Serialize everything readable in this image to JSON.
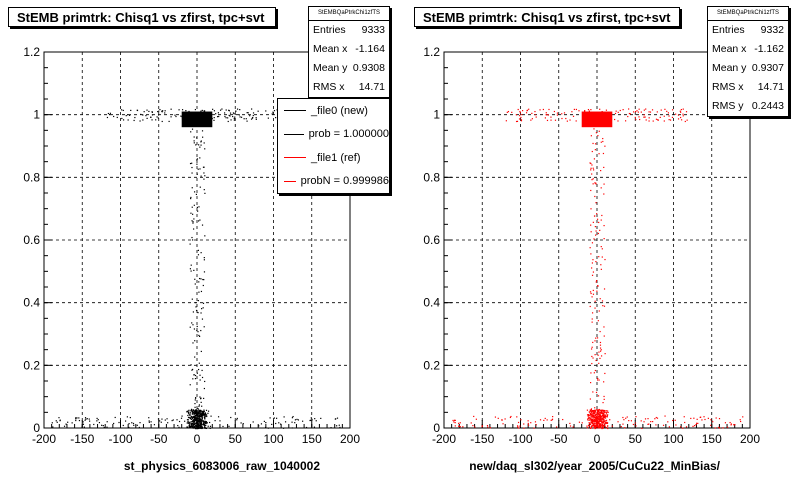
{
  "colors": {
    "ref": "#000000",
    "new": "#ff0000",
    "grid": "#000000"
  },
  "panels": [
    {
      "title": "StEMB primtrk: Chisq1 vs zfirst, tpc+svt",
      "xlabel": "st_physics_6083006_raw_1040002",
      "stats": {
        "name": "StEMBQaPtrkChi1zfTS",
        "rows": [
          {
            "label": "Entries",
            "value": "9333"
          },
          {
            "label": "Mean x",
            "value": "-1.164"
          },
          {
            "label": "Mean y",
            "value": "0.9308"
          },
          {
            "label": "RMS x",
            "value": "14.71"
          }
        ]
      }
    },
    {
      "title": "StEMB primtrk: Chisq1 vs zfirst, tpc+svt",
      "xlabel": "new/daq_sl302/year_2005/CuCu22_MinBias/",
      "stats": {
        "name": "StEMBQaPtrkChi1zfTS",
        "rows": [
          {
            "label": "Entries",
            "value": "9332"
          },
          {
            "label": "Mean x",
            "value": "-1.162"
          },
          {
            "label": "Mean y",
            "value": "0.9307"
          },
          {
            "label": "RMS x",
            "value": "14.71"
          },
          {
            "label": "RMS y",
            "value": "0.2443"
          }
        ]
      }
    }
  ],
  "legend": [
    {
      "label": "_file0 (new)",
      "color": "#000000"
    },
    {
      "label": "prob = 1.000000",
      "color": "#000000"
    },
    {
      "label": "_file1 (ref)",
      "color": "#ff0000"
    },
    {
      "label": "probN = 0.999986",
      "color": "#ff0000"
    }
  ],
  "chart_data": [
    {
      "type": "scatter",
      "title": "StEMB primtrk: Chisq1 vs zfirst, tpc+svt",
      "xlabel": "st_physics_6083006_raw_1040002",
      "ylabel": "",
      "xlim": [
        -200,
        200
      ],
      "ylim": [
        0,
        1.2
      ],
      "xticks": [
        -200,
        -150,
        -100,
        -50,
        0,
        50,
        100,
        150,
        200
      ],
      "yticks": [
        0,
        0.2,
        0.4,
        0.6,
        0.8,
        1,
        1.2
      ],
      "grid": true,
      "color": "#000000",
      "density": [
        {
          "x": [
            -20,
            20
          ],
          "y": [
            0.96,
            1.01
          ],
          "weight": "very-high"
        },
        {
          "x": [
            -120,
            120
          ],
          "y": [
            0.98,
            1.02
          ],
          "weight": "low"
        },
        {
          "x": [
            -15,
            15
          ],
          "y": [
            0.0,
            0.06
          ],
          "weight": "high"
        },
        {
          "x": [
            -10,
            10
          ],
          "y": [
            0.06,
            0.96
          ],
          "weight": "low"
        },
        {
          "x": [
            -190,
            190
          ],
          "y": [
            0.0,
            0.04
          ],
          "weight": "low"
        }
      ],
      "entries": 9333,
      "mean_x": -1.164,
      "mean_y": 0.9308,
      "rms_x": 14.71
    },
    {
      "type": "scatter",
      "title": "StEMB primtrk: Chisq1 vs zfirst, tpc+svt",
      "xlabel": "new/daq_sl302/year_2005/CuCu22_MinBias/",
      "ylabel": "",
      "xlim": [
        -200,
        200
      ],
      "ylim": [
        0,
        1.2
      ],
      "xticks": [
        -200,
        -150,
        -100,
        -50,
        0,
        50,
        100,
        150,
        200
      ],
      "yticks": [
        0,
        0.2,
        0.4,
        0.6,
        0.8,
        1,
        1.2
      ],
      "grid": true,
      "color": "#ff0000",
      "density": [
        {
          "x": [
            -20,
            20
          ],
          "y": [
            0.96,
            1.01
          ],
          "weight": "very-high"
        },
        {
          "x": [
            -120,
            120
          ],
          "y": [
            0.98,
            1.02
          ],
          "weight": "low"
        },
        {
          "x": [
            -15,
            15
          ],
          "y": [
            0.0,
            0.06
          ],
          "weight": "high"
        },
        {
          "x": [
            -10,
            10
          ],
          "y": [
            0.06,
            0.96
          ],
          "weight": "low"
        },
        {
          "x": [
            -190,
            190
          ],
          "y": [
            0.0,
            0.04
          ],
          "weight": "low"
        }
      ],
      "entries": 9332,
      "mean_x": -1.162,
      "mean_y": 0.9307,
      "rms_x": 14.71,
      "rms_y": 0.2443
    }
  ]
}
